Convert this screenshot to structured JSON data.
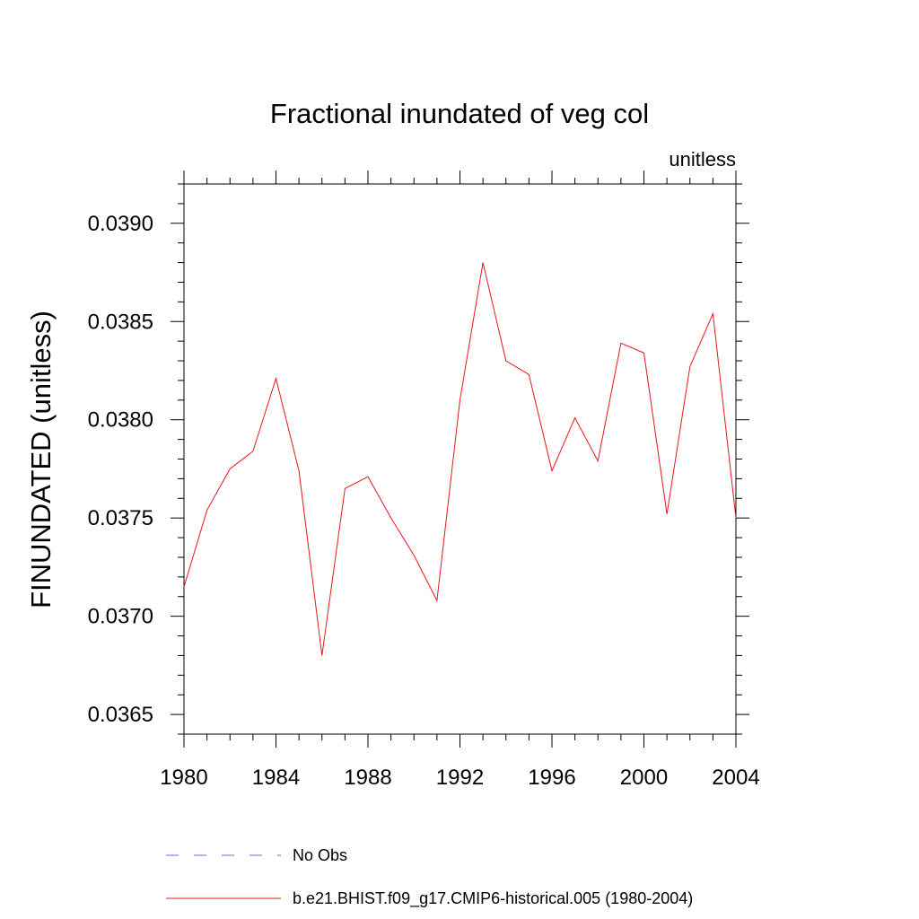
{
  "chart_data": {
    "type": "line",
    "title": "Fractional inundated of veg col",
    "units_label": "unitless",
    "ylabel": "FINUNDATED  (unitless)",
    "xlabel": "",
    "xlim": [
      1980,
      2004
    ],
    "ylim": [
      0.0364,
      0.0392
    ],
    "x_ticks": [
      1980,
      1984,
      1988,
      1992,
      1996,
      2000,
      2004
    ],
    "y_ticks": [
      0.0365,
      0.037,
      0.0375,
      0.038,
      0.0385,
      0.039
    ],
    "y_tick_labels": [
      "0.0365",
      "0.0370",
      "0.0375",
      "0.0380",
      "0.0385",
      "0.0390"
    ],
    "series": [
      {
        "name": "b.e21.BHIST.f09_g17.CMIP6-historical.005 (1980-2004)",
        "color": "#e8141c",
        "style": "solid",
        "x": [
          1980,
          1981,
          1982,
          1983,
          1984,
          1985,
          1986,
          1987,
          1988,
          1989,
          1990,
          1991,
          1992,
          1993,
          1994,
          1995,
          1996,
          1997,
          1998,
          1999,
          2000,
          2001,
          2002,
          2003,
          2004
        ],
        "y": [
          0.03715,
          0.03754,
          0.03775,
          0.03784,
          0.03821,
          0.03774,
          0.0368,
          0.03765,
          0.03771,
          0.0375,
          0.03731,
          0.03708,
          0.0381,
          0.0388,
          0.0383,
          0.03823,
          0.03774,
          0.03801,
          0.03779,
          0.03839,
          0.03834,
          0.03752,
          0.03827,
          0.03854,
          0.0375
        ]
      }
    ],
    "legend": [
      {
        "label": "No Obs",
        "color": "#6a6ad0",
        "style": "dashed"
      },
      {
        "label": "b.e21.BHIST.f09_g17.CMIP6-historical.005 (1980-2004)",
        "color": "#e8141c",
        "style": "solid"
      }
    ],
    "legend_position": "bottom",
    "grid": false
  }
}
